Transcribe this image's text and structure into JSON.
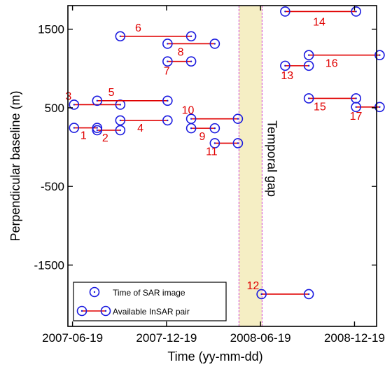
{
  "chart_data": {
    "type": "scatter",
    "xlabel": "Time (yy-mm-dd)",
    "ylabel": "Perpendicular baseline (m)",
    "x_ticks": [
      "2007-06-19",
      "2007-12-19",
      "2008-06-19",
      "2008-12-19"
    ],
    "y_ticks": [
      1500,
      500,
      -500,
      -1500
    ],
    "xlim": [
      "2007-06-10",
      "2009-01-31"
    ],
    "ylim": [
      -2280,
      1800
    ],
    "gap": {
      "label": "Temporal gap",
      "from": "2008-05-08",
      "to": "2008-06-22",
      "color": "#f5eec4",
      "border_color": "#d040d0"
    },
    "legend": {
      "position": "bottom-left",
      "items": [
        {
          "label": "Time of SAR image",
          "kind": "image"
        },
        {
          "label": "Available InSAR pair",
          "kind": "pair"
        }
      ]
    },
    "colors": {
      "marker": "#1a1adf",
      "pair_line": "#e00000",
      "pair_label": "#e00000"
    },
    "pairs": [
      {
        "label": "1",
        "from": {
          "date": "2007-06-22",
          "baseline": 245
        },
        "to": {
          "date": "2007-08-06",
          "baseline": 245
        }
      },
      {
        "label": "2",
        "from": {
          "date": "2007-08-06",
          "baseline": 215
        },
        "to": {
          "date": "2007-09-20",
          "baseline": 215
        }
      },
      {
        "label": "3",
        "from": {
          "date": "2007-06-22",
          "baseline": 540
        },
        "to": {
          "date": "2007-09-20",
          "baseline": 540
        }
      },
      {
        "label": "4",
        "from": {
          "date": "2007-09-20",
          "baseline": 340
        },
        "to": {
          "date": "2007-12-21",
          "baseline": 340
        }
      },
      {
        "label": "5",
        "from": {
          "date": "2007-08-06",
          "baseline": 590
        },
        "to": {
          "date": "2007-12-21",
          "baseline": 590
        }
      },
      {
        "label": "6",
        "from": {
          "date": "2007-09-20",
          "baseline": 1410
        },
        "to": {
          "date": "2008-02-05",
          "baseline": 1410
        }
      },
      {
        "label": "7",
        "from": {
          "date": "2007-12-21",
          "baseline": 1090
        },
        "to": {
          "date": "2008-02-05",
          "baseline": 1090
        }
      },
      {
        "label": "8",
        "from": {
          "date": "2007-12-21",
          "baseline": 1315
        },
        "to": {
          "date": "2008-03-22",
          "baseline": 1315
        }
      },
      {
        "label": "9",
        "from": {
          "date": "2008-02-05",
          "baseline": 240
        },
        "to": {
          "date": "2008-03-22",
          "baseline": 240
        }
      },
      {
        "label": "10",
        "from": {
          "date": "2008-02-05",
          "baseline": 360
        },
        "to": {
          "date": "2008-05-06",
          "baseline": 360
        }
      },
      {
        "label": "11",
        "from": {
          "date": "2008-03-22",
          "baseline": 50
        },
        "to": {
          "date": "2008-05-06",
          "baseline": 50
        }
      },
      {
        "label": "12",
        "from": {
          "date": "2008-06-21",
          "baseline": -1870
        },
        "to": {
          "date": "2008-09-21",
          "baseline": -1870
        }
      },
      {
        "label": "13",
        "from": {
          "date": "2008-08-06",
          "baseline": 1035
        },
        "to": {
          "date": "2008-09-21",
          "baseline": 1035
        }
      },
      {
        "label": "14",
        "from": {
          "date": "2008-08-06",
          "baseline": 1725
        },
        "to": {
          "date": "2008-12-22",
          "baseline": 1725
        }
      },
      {
        "label": "15",
        "from": {
          "date": "2008-09-21",
          "baseline": 620
        },
        "to": {
          "date": "2008-12-22",
          "baseline": 620
        }
      },
      {
        "label": "16",
        "from": {
          "date": "2008-09-21",
          "baseline": 1170
        },
        "to": {
          "date": "2009-02-06",
          "baseline": 1170
        }
      },
      {
        "label": "17",
        "from": {
          "date": "2008-12-22",
          "baseline": 510
        },
        "to": {
          "date": "2009-02-06",
          "baseline": 510
        }
      }
    ]
  }
}
